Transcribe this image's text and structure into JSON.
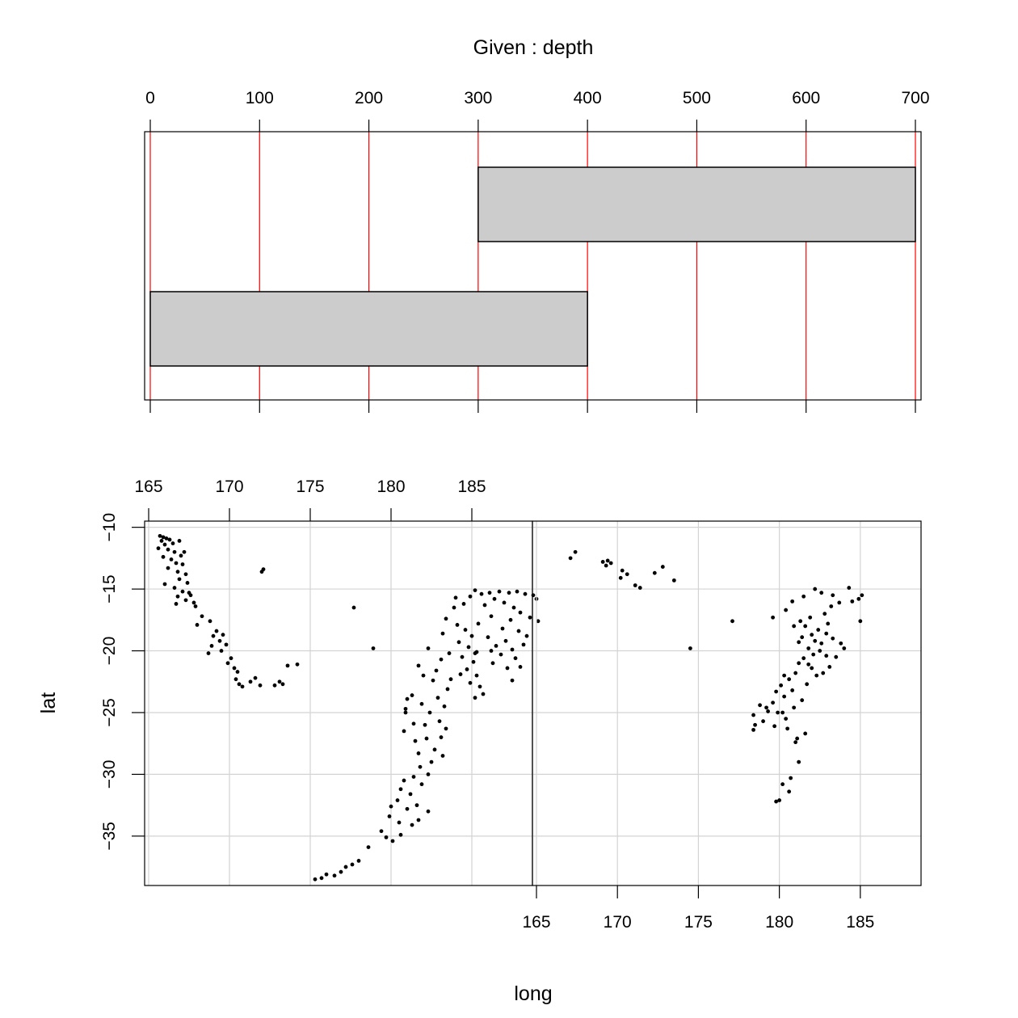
{
  "chart_data": [
    {
      "type": "bar",
      "title": "Given : depth",
      "axis": {
        "ticks": [
          "0",
          "100",
          "200",
          "300",
          "400",
          "500",
          "600",
          "700"
        ],
        "range": [
          0,
          700
        ]
      },
      "intervals": [
        {
          "from": 0,
          "to": 400
        },
        {
          "from": 300,
          "to": 700
        }
      ],
      "colors": {
        "interval_fill": "#cccccc",
        "reference_lines": "#ff0000"
      }
    },
    {
      "type": "scatter",
      "xlabel": "long",
      "ylabel": "lat",
      "xlim": [
        165,
        189
      ],
      "ylim": [
        -39,
        -9.5
      ],
      "x_ticks": [
        "165",
        "170",
        "175",
        "180",
        "185"
      ],
      "y_ticks": [
        "-10",
        "-15",
        "-20",
        "-25",
        "-30",
        "-35"
      ],
      "grid": true,
      "colors": {
        "grid": "#d3d3d3",
        "points": "#000000"
      },
      "panels": [
        {
          "depth_interval": [
            0,
            400
          ],
          "points": [
            [
              165.7,
              -10.7
            ],
            [
              165.9,
              -10.8
            ],
            [
              166.1,
              -10.9
            ],
            [
              165.8,
              -11.1
            ],
            [
              166.3,
              -11.0
            ],
            [
              166.0,
              -11.4
            ],
            [
              166.5,
              -11.3
            ],
            [
              165.6,
              -11.7
            ],
            [
              166.2,
              -11.8
            ],
            [
              166.6,
              -12.0
            ],
            [
              166.9,
              -11.1
            ],
            [
              167.0,
              -12.3
            ],
            [
              167.2,
              -12.0
            ],
            [
              165.9,
              -12.4
            ],
            [
              166.4,
              -12.6
            ],
            [
              166.7,
              -12.9
            ],
            [
              167.1,
              -13.0
            ],
            [
              166.2,
              -13.3
            ],
            [
              166.8,
              -13.6
            ],
            [
              167.3,
              -13.8
            ],
            [
              166.9,
              -14.2
            ],
            [
              167.4,
              -14.5
            ],
            [
              166.0,
              -14.6
            ],
            [
              166.6,
              -14.9
            ],
            [
              167.1,
              -15.2
            ],
            [
              167.5,
              -15.3
            ],
            [
              166.8,
              -15.6
            ],
            [
              167.3,
              -15.9
            ],
            [
              166.7,
              -16.2
            ],
            [
              167.8,
              -16.1
            ],
            [
              167.6,
              -15.5
            ],
            [
              167.9,
              -16.4
            ],
            [
              168.3,
              -17.2
            ],
            [
              168.8,
              -17.6
            ],
            [
              168.0,
              -17.9
            ],
            [
              169.2,
              -18.4
            ],
            [
              169.0,
              -18.8
            ],
            [
              169.6,
              -18.7
            ],
            [
              169.4,
              -19.2
            ],
            [
              168.9,
              -19.6
            ],
            [
              169.8,
              -19.5
            ],
            [
              168.7,
              -20.2
            ],
            [
              169.5,
              -20.0
            ],
            [
              170.1,
              -20.6
            ],
            [
              169.9,
              -21.0
            ],
            [
              170.3,
              -21.4
            ],
            [
              170.5,
              -21.7
            ],
            [
              170.4,
              -22.3
            ],
            [
              170.6,
              -22.7
            ],
            [
              170.8,
              -22.9
            ],
            [
              171.3,
              -22.5
            ],
            [
              171.6,
              -22.2
            ],
            [
              171.9,
              -22.8
            ],
            [
              172.0,
              -13.6
            ],
            [
              172.1,
              -13.4
            ],
            [
              172.8,
              -22.8
            ],
            [
              173.1,
              -22.5
            ],
            [
              173.3,
              -22.7
            ],
            [
              173.6,
              -21.2
            ],
            [
              174.2,
              -21.1
            ],
            [
              177.7,
              -16.5
            ],
            [
              178.9,
              -19.8
            ],
            [
              185.2,
              -15.1
            ],
            [
              184.9,
              -15.6
            ],
            [
              185.6,
              -15.4
            ],
            [
              186.1,
              -15.3
            ],
            [
              186.7,
              -15.2
            ],
            [
              187.3,
              -15.3
            ],
            [
              187.8,
              -15.2
            ],
            [
              188.3,
              -15.4
            ],
            [
              188.8,
              -15.5
            ],
            [
              189.0,
              -15.8
            ],
            [
              186.4,
              -15.8
            ],
            [
              187.0,
              -16.1
            ],
            [
              185.8,
              -16.3
            ],
            [
              187.6,
              -16.5
            ],
            [
              188.0,
              -16.9
            ],
            [
              186.2,
              -17.2
            ],
            [
              187.4,
              -17.5
            ],
            [
              188.6,
              -17.3
            ],
            [
              189.1,
              -17.6
            ],
            [
              185.4,
              -17.8
            ],
            [
              186.9,
              -18.2
            ],
            [
              187.9,
              -18.4
            ],
            [
              188.4,
              -18.8
            ],
            [
              186.0,
              -18.9
            ],
            [
              187.1,
              -19.2
            ],
            [
              186.5,
              -19.6
            ],
            [
              187.5,
              -19.9
            ],
            [
              186.8,
              -20.3
            ],
            [
              187.7,
              -20.6
            ],
            [
              186.3,
              -21.0
            ],
            [
              187.2,
              -21.4
            ],
            [
              188.2,
              -19.5
            ],
            [
              185.3,
              -20.1
            ],
            [
              184.5,
              -16.2
            ],
            [
              183.9,
              -16.5
            ],
            [
              183.4,
              -17.4
            ],
            [
              184.1,
              -17.9
            ],
            [
              183.2,
              -18.6
            ],
            [
              184.6,
              -18.3
            ],
            [
              185.0,
              -18.8
            ],
            [
              184.2,
              -19.3
            ],
            [
              184.8,
              -19.7
            ],
            [
              185.2,
              -20.2
            ],
            [
              184.4,
              -20.5
            ],
            [
              185.1,
              -20.9
            ],
            [
              184.7,
              -21.5
            ],
            [
              185.3,
              -22.0
            ],
            [
              184.9,
              -22.6
            ],
            [
              185.5,
              -22.9
            ],
            [
              185.7,
              -23.5
            ],
            [
              185.2,
              -23.8
            ],
            [
              184.3,
              -21.9
            ],
            [
              183.7,
              -22.3
            ],
            [
              183.1,
              -20.7
            ],
            [
              182.8,
              -21.6
            ],
            [
              182.3,
              -19.8
            ],
            [
              181.7,
              -21.2
            ],
            [
              182.6,
              -22.4
            ],
            [
              183.5,
              -23.1
            ],
            [
              182.9,
              -23.8
            ],
            [
              183.3,
              -24.5
            ],
            [
              182.4,
              -25.0
            ],
            [
              183.0,
              -25.7
            ],
            [
              182.1,
              -26.0
            ],
            [
              181.9,
              -24.3
            ],
            [
              181.3,
              -23.6
            ],
            [
              180.9,
              -25.0
            ],
            [
              181.4,
              -25.9
            ],
            [
              180.8,
              -26.5
            ],
            [
              181.5,
              -27.3
            ],
            [
              182.2,
              -27.1
            ],
            [
              183.1,
              -27.0
            ],
            [
              182.7,
              -28.0
            ],
            [
              181.7,
              -28.3
            ],
            [
              183.4,
              -26.3
            ],
            [
              183.2,
              -28.5
            ],
            [
              182.5,
              -29.0
            ],
            [
              181.8,
              -29.4
            ],
            [
              182.3,
              -30.0
            ],
            [
              181.4,
              -30.2
            ],
            [
              180.8,
              -30.5
            ],
            [
              180.6,
              -31.2
            ],
            [
              181.2,
              -31.6
            ],
            [
              181.9,
              -30.8
            ],
            [
              180.4,
              -32.1
            ],
            [
              180.0,
              -32.6
            ],
            [
              181.0,
              -32.8
            ],
            [
              181.6,
              -32.5
            ],
            [
              182.3,
              -33.0
            ],
            [
              179.9,
              -33.4
            ],
            [
              180.5,
              -33.9
            ],
            [
              181.7,
              -33.7
            ],
            [
              181.3,
              -34.1
            ],
            [
              179.4,
              -34.6
            ],
            [
              180.6,
              -34.9
            ],
            [
              180.1,
              -35.4
            ],
            [
              179.7,
              -35.1
            ],
            [
              178.6,
              -35.9
            ],
            [
              178.0,
              -37.0
            ],
            [
              177.6,
              -37.3
            ],
            [
              177.2,
              -37.5
            ],
            [
              176.5,
              -38.2
            ],
            [
              176.9,
              -37.9
            ],
            [
              175.7,
              -38.4
            ],
            [
              175.3,
              -38.5
            ],
            [
              176.0,
              -38.1
            ],
            [
              181.0,
              -23.9
            ],
            [
              180.9,
              -24.7
            ],
            [
              182.0,
              -22.0
            ],
            [
              183.6,
              -20.2
            ],
            [
              184.0,
              -15.7
            ],
            [
              186.2,
              -20.0
            ],
            [
              187.5,
              -22.4
            ],
            [
              188.0,
              -21.3
            ]
          ]
        },
        {
          "depth_interval": [
            300,
            700
          ],
          "points": [
            [
              167.1,
              -12.5
            ],
            [
              167.4,
              -12.0
            ],
            [
              169.1,
              -12.8
            ],
            [
              169.4,
              -12.7
            ],
            [
              169.6,
              -12.9
            ],
            [
              169.3,
              -13.1
            ],
            [
              170.3,
              -13.5
            ],
            [
              170.6,
              -13.8
            ],
            [
              170.2,
              -14.1
            ],
            [
              171.1,
              -14.7
            ],
            [
              171.4,
              -14.9
            ],
            [
              172.3,
              -13.7
            ],
            [
              172.8,
              -13.2
            ],
            [
              173.5,
              -14.3
            ],
            [
              177.1,
              -17.6
            ],
            [
              174.5,
              -19.8
            ],
            [
              179.6,
              -17.3
            ],
            [
              180.4,
              -16.7
            ],
            [
              180.8,
              -16.0
            ],
            [
              181.5,
              -15.6
            ],
            [
              182.2,
              -15.0
            ],
            [
              182.6,
              -15.3
            ],
            [
              183.3,
              -15.5
            ],
            [
              183.7,
              -16.1
            ],
            [
              184.3,
              -14.9
            ],
            [
              184.9,
              -15.8
            ],
            [
              185.1,
              -15.5
            ],
            [
              183.2,
              -16.4
            ],
            [
              182.8,
              -17.0
            ],
            [
              181.9,
              -17.3
            ],
            [
              181.3,
              -17.6
            ],
            [
              181.6,
              -18.0
            ],
            [
              182.4,
              -18.3
            ],
            [
              182.9,
              -18.6
            ],
            [
              183.3,
              -19.0
            ],
            [
              182.6,
              -19.4
            ],
            [
              181.8,
              -19.8
            ],
            [
              182.1,
              -20.3
            ],
            [
              181.5,
              -20.6
            ],
            [
              181.2,
              -21.0
            ],
            [
              182.0,
              -21.4
            ],
            [
              181.0,
              -21.8
            ],
            [
              180.6,
              -22.3
            ],
            [
              180.1,
              -22.8
            ],
            [
              179.8,
              -23.3
            ],
            [
              180.3,
              -23.7
            ],
            [
              179.6,
              -24.2
            ],
            [
              179.2,
              -24.6
            ],
            [
              179.9,
              -25.0
            ],
            [
              178.8,
              -24.4
            ],
            [
              178.4,
              -25.2
            ],
            [
              178.5,
              -26.0
            ],
            [
              178.4,
              -26.4
            ],
            [
              179.0,
              -25.7
            ],
            [
              179.7,
              -26.1
            ],
            [
              180.4,
              -25.5
            ],
            [
              180.9,
              -24.6
            ],
            [
              181.1,
              -27.1
            ],
            [
              181.0,
              -27.4
            ],
            [
              181.2,
              -29.0
            ],
            [
              180.7,
              -30.3
            ],
            [
              180.2,
              -30.8
            ],
            [
              180.6,
              -31.4
            ],
            [
              179.8,
              -32.2
            ],
            [
              180.0,
              -32.1
            ],
            [
              180.5,
              -26.3
            ],
            [
              181.6,
              -26.7
            ],
            [
              182.3,
              -22.0
            ],
            [
              183.1,
              -21.3
            ],
            [
              183.5,
              -20.5
            ],
            [
              184.0,
              -19.8
            ],
            [
              181.7,
              -22.7
            ],
            [
              182.7,
              -21.8
            ],
            [
              180.9,
              -18.0
            ],
            [
              181.4,
              -18.9
            ],
            [
              182.2,
              -19.2
            ],
            [
              182.5,
              -20.0
            ],
            [
              183.8,
              -19.4
            ],
            [
              184.5,
              -16.0
            ],
            [
              185.0,
              -17.6
            ],
            [
              179.3,
              -24.9
            ],
            [
              180.8,
              -23.2
            ],
            [
              181.4,
              -24.0
            ],
            [
              180.2,
              -25.0
            ],
            [
              181.8,
              -21.1
            ],
            [
              182.9,
              -20.4
            ],
            [
              183.0,
              -17.8
            ],
            [
              180.3,
              -22.0
            ],
            [
              181.2,
              -19.3
            ],
            [
              182.0,
              -18.7
            ]
          ]
        }
      ]
    }
  ]
}
